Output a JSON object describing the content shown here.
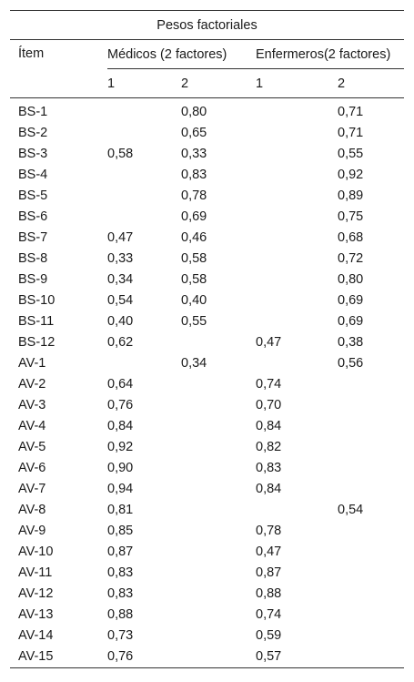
{
  "table": {
    "title": "Pesos factoriales",
    "item_header": "Ítem",
    "groups": [
      "Médicos (2 factores)",
      "Enfermeros(2 factores)"
    ],
    "subheaders": [
      "1",
      "2",
      "1",
      "2"
    ],
    "rows": [
      [
        "BS-1",
        "",
        "0,80",
        "",
        "0,71"
      ],
      [
        "BS-2",
        "",
        "0,65",
        "",
        "0,71"
      ],
      [
        "BS-3",
        "0,58",
        "0,33",
        "",
        "0,55"
      ],
      [
        "BS-4",
        "",
        "0,83",
        "",
        "0,92"
      ],
      [
        "BS-5",
        "",
        "0,78",
        "",
        "0,89"
      ],
      [
        "BS-6",
        "",
        "0,69",
        "",
        "0,75"
      ],
      [
        "BS-7",
        "0,47",
        "0,46",
        "",
        "0,68"
      ],
      [
        "BS-8",
        "0,33",
        "0,58",
        "",
        "0,72"
      ],
      [
        "BS-9",
        "0,34",
        "0,58",
        "",
        "0,80"
      ],
      [
        "BS-10",
        "0,54",
        "0,40",
        "",
        "0,69"
      ],
      [
        "BS-11",
        "0,40",
        "0,55",
        "",
        "0,69"
      ],
      [
        "BS-12",
        "0,62",
        "",
        "0,47",
        "0,38"
      ],
      [
        "AV-1",
        "",
        "0,34",
        "",
        "0,56"
      ],
      [
        "AV-2",
        "0,64",
        "",
        "0,74",
        ""
      ],
      [
        "AV-3",
        "0,76",
        "",
        "0,70",
        ""
      ],
      [
        "AV-4",
        "0,84",
        "",
        "0,84",
        ""
      ],
      [
        "AV-5",
        "0,92",
        "",
        "0,82",
        ""
      ],
      [
        "AV-6",
        "0,90",
        "",
        "0,83",
        ""
      ],
      [
        "AV-7",
        "0,94",
        "",
        "0,84",
        ""
      ],
      [
        "AV-8",
        "0,81",
        "",
        "",
        "0,54"
      ],
      [
        "AV-9",
        "0,85",
        "",
        "0,78",
        ""
      ],
      [
        "AV-10",
        "0,87",
        "",
        "0,47",
        ""
      ],
      [
        "AV-11",
        "0,83",
        "",
        "0,87",
        ""
      ],
      [
        "AV-12",
        "0,83",
        "",
        "0,88",
        ""
      ],
      [
        "AV-13",
        "0,88",
        "",
        "0,74",
        ""
      ],
      [
        "AV-14",
        "0,73",
        "",
        "0,59",
        ""
      ],
      [
        "AV-15",
        "0,76",
        "",
        "0,57",
        ""
      ]
    ]
  }
}
